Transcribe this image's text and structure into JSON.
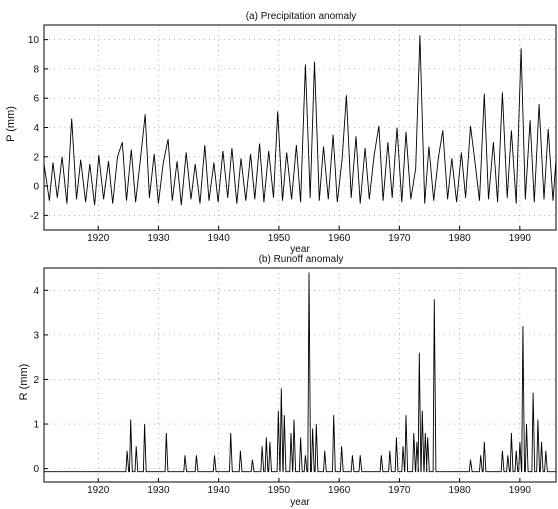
{
  "chart_data": [
    {
      "type": "line",
      "title": "(a) Precipitation anomaly",
      "xlabel": "year",
      "ylabel": "P (mm)",
      "xlim": [
        1911,
        1996
      ],
      "ylim": [
        -3,
        11
      ],
      "xticks": [
        1920,
        1930,
        1940,
        1950,
        1960,
        1970,
        1980,
        1990
      ],
      "yticks": [
        -2,
        0,
        2,
        4,
        6,
        8,
        10
      ],
      "grid": "dotted",
      "series": [
        {
          "baseline": 0,
          "x": [
            1911.0,
            1911.9,
            1912.5,
            1913.2,
            1914.0,
            1914.8,
            1915.6,
            1916.4,
            1917.1,
            1917.9,
            1918.6,
            1919.4,
            1920.1,
            1920.9,
            1921.7,
            1922.4,
            1923.2,
            1924.0,
            1924.7,
            1925.5,
            1926.2,
            1927.0,
            1927.8,
            1928.5,
            1929.3,
            1930.0,
            1930.8,
            1931.6,
            1932.3,
            1933.1,
            1933.8,
            1934.6,
            1935.4,
            1936.1,
            1936.9,
            1937.7,
            1938.4,
            1939.2,
            1939.9,
            1940.7,
            1941.5,
            1942.2,
            1943.0,
            1943.7,
            1944.5,
            1945.3,
            1946.0,
            1946.8,
            1947.5,
            1948.3,
            1949.1,
            1949.8,
            1950.6,
            1951.3,
            1952.1,
            1952.9,
            1953.6,
            1954.4,
            1955.2,
            1955.9,
            1956.7,
            1957.4,
            1958.2,
            1959.0,
            1959.7,
            1960.5,
            1961.2,
            1962.0,
            1962.8,
            1963.5,
            1964.3,
            1965.0,
            1965.8,
            1966.6,
            1967.3,
            1968.1,
            1968.8,
            1969.6,
            1970.4,
            1971.1,
            1971.9,
            1972.7,
            1973.4,
            1974.2,
            1974.9,
            1975.7,
            1976.5,
            1977.2,
            1978.0,
            1978.7,
            1979.5,
            1980.3,
            1981.0,
            1981.8,
            1982.5,
            1983.3,
            1984.1,
            1984.8,
            1985.6,
            1986.3,
            1987.1,
            1987.9,
            1988.6,
            1989.4,
            1990.2,
            1990.9,
            1991.7,
            1992.4,
            1993.2,
            1994.0,
            1994.7,
            1995.5,
            1996.0
          ],
          "y": [
            1.5,
            -1.0,
            1.6,
            -0.8,
            2.0,
            -1.2,
            4.6,
            -0.9,
            1.8,
            -1.1,
            1.5,
            -1.3,
            2.1,
            -0.9,
            1.7,
            -1.2,
            2.0,
            3.0,
            -1.0,
            2.5,
            -1.1,
            1.8,
            4.9,
            -0.8,
            2.2,
            -1.2,
            1.6,
            3.2,
            -1.0,
            1.7,
            -1.3,
            2.3,
            -0.9,
            1.5,
            -1.2,
            2.8,
            -1.0,
            1.6,
            -1.1,
            2.4,
            -0.8,
            2.6,
            -1.2,
            1.9,
            -1.0,
            2.2,
            -0.9,
            2.9,
            -1.1,
            2.4,
            -0.8,
            5.1,
            -1.0,
            2.3,
            -0.9,
            2.8,
            -1.1,
            8.3,
            -0.8,
            8.5,
            -1.0,
            2.7,
            -0.9,
            3.5,
            -1.1,
            1.9,
            6.2,
            -0.8,
            3.4,
            -1.2,
            2.6,
            -0.9,
            2.1,
            4.1,
            -1.0,
            3.0,
            -0.8,
            4.0,
            -1.1,
            3.7,
            -0.9,
            1.2,
            10.3,
            -1.2,
            2.7,
            -1.0,
            2.0,
            3.8,
            -0.9,
            1.9,
            -1.1,
            2.3,
            -0.8,
            4.1,
            1.8,
            -1.0,
            6.3,
            -0.9,
            3.0,
            -1.1,
            6.4,
            -0.8,
            3.8,
            -1.2,
            9.4,
            -0.9,
            4.5,
            -1.1,
            5.6,
            -0.9,
            3.9,
            -1.0,
            1.8
          ]
        }
      ]
    },
    {
      "type": "line",
      "title": "(b) Runoff anomaly",
      "xlabel": "year",
      "ylabel": "R (mm)",
      "xlim": [
        1911,
        1996
      ],
      "ylim": [
        -0.3,
        4.5
      ],
      "xticks": [
        1920,
        1930,
        1940,
        1950,
        1960,
        1970,
        1980,
        1990
      ],
      "yticks": [
        0,
        1,
        2,
        3,
        4
      ],
      "grid": "dotted",
      "series": [
        {
          "baseline": -0.07,
          "x": [
            1924.8,
            1925.4,
            1926.3,
            1927.7,
            1931.3,
            1934.4,
            1936.3,
            1939.3,
            1942.0,
            1943.6,
            1945.6,
            1947.2,
            1947.9,
            1948.5,
            1949.9,
            1950.4,
            1950.9,
            1952.0,
            1952.5,
            1953.6,
            1954.4,
            1955.0,
            1955.6,
            1956.2,
            1957.6,
            1959.1,
            1960.4,
            1962.2,
            1963.5,
            1967.0,
            1968.4,
            1969.5,
            1970.6,
            1971.1,
            1972.4,
            1972.9,
            1973.3,
            1973.8,
            1974.3,
            1974.7,
            1975.8,
            1981.8,
            1983.5,
            1984.1,
            1987.1,
            1988.0,
            1988.6,
            1989.4,
            1990.0,
            1990.5,
            1991.1,
            1992.2,
            1993.0,
            1993.6,
            1994.3
          ],
          "y": [
            0.4,
            1.1,
            0.5,
            1.0,
            0.8,
            0.3,
            0.3,
            0.3,
            0.8,
            0.4,
            0.2,
            0.5,
            0.7,
            0.6,
            1.3,
            1.8,
            1.2,
            0.8,
            1.1,
            0.7,
            0.3,
            4.4,
            0.9,
            1.0,
            0.4,
            1.2,
            0.5,
            0.3,
            0.3,
            0.3,
            0.4,
            0.7,
            0.5,
            1.2,
            0.8,
            0.6,
            2.6,
            1.3,
            0.8,
            0.7,
            3.8,
            0.2,
            0.3,
            0.6,
            0.4,
            0.3,
            0.8,
            0.4,
            0.6,
            3.2,
            1.0,
            1.7,
            1.1,
            0.6,
            0.4
          ]
        }
      ]
    }
  ]
}
